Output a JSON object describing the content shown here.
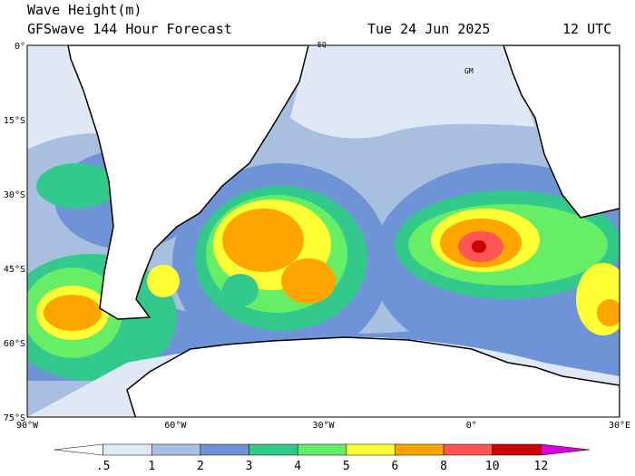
{
  "header": {
    "title": "Wave Height(m)",
    "subtitle": "GFSwave 144 Hour Forecast",
    "date": "Tue 24 Jun 2025",
    "time": "12 UTC"
  },
  "map": {
    "lat_labels": [
      "0°",
      "15°S",
      "30°S",
      "45°S",
      "60°S",
      "75°S"
    ],
    "lon_labels": [
      "90°W",
      "60°W",
      "30°W",
      "0°",
      "30°E"
    ],
    "labels": [
      "EQ",
      "GM"
    ]
  },
  "colorbar": {
    "labels": [
      ".5",
      "1",
      "2",
      "3",
      "4",
      "5",
      "6",
      "8",
      "10",
      "12"
    ],
    "colors": [
      "#ffffff",
      "#dfe8f4",
      "#a9bfe0",
      "#6e93d6",
      "#33c98c",
      "#66ee66",
      "#ffff33",
      "#ffa500",
      "#ff5555",
      "#cc0000",
      "#dd00dd"
    ]
  }
}
